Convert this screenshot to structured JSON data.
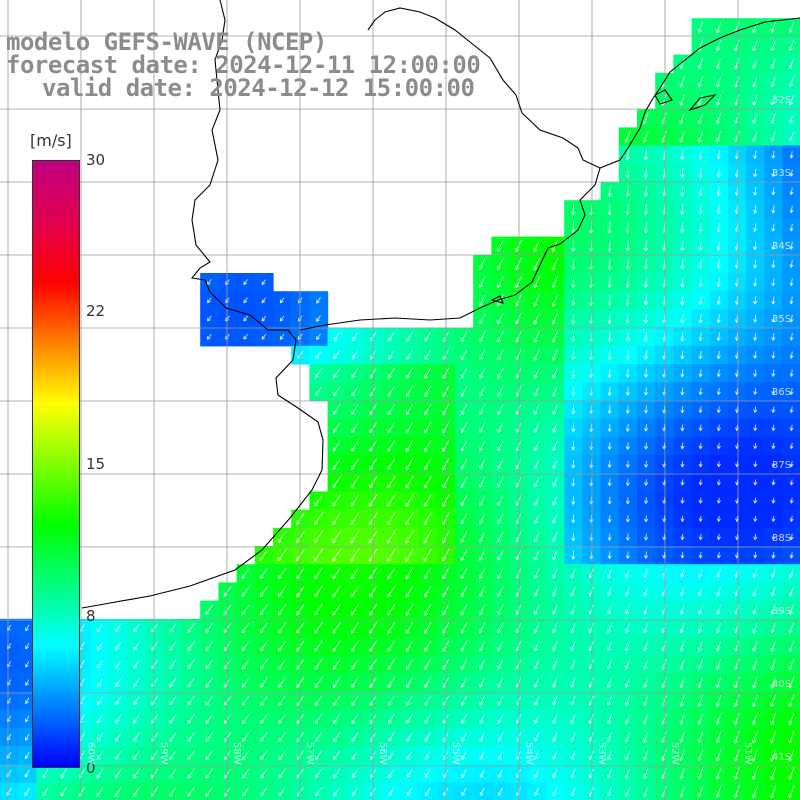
{
  "header": {
    "line1": "modelo GEFS-WAVE (NCEP)",
    "line2": "forecast date: 2024-12-11 12:00:00",
    "line3": "valid date: 2024-12-12 15:00:00"
  },
  "colorbar": {
    "unit": "[m/s]",
    "ticks": [
      "30",
      "22",
      "15",
      "8",
      "0"
    ],
    "tick_values": [
      30,
      22,
      15,
      8,
      0
    ],
    "min": 0,
    "max": 30,
    "stops": [
      "#0000ff",
      "#0080ff",
      "#00ffff",
      "#00ff80",
      "#00ff00",
      "#80ff00",
      "#ffff00",
      "#ff8000",
      "#ff0000",
      "#e0004f",
      "#c00080"
    ]
  },
  "map": {
    "lat_labels": [
      "32S",
      "33S",
      "34S",
      "35S",
      "36S",
      "37S",
      "38S",
      "39S",
      "40S",
      "41S"
    ],
    "lon_labels": [
      "60W",
      "59W",
      "58W",
      "57W",
      "56W",
      "55W",
      "54W",
      "53W",
      "52W",
      "51W"
    ],
    "colors": {
      "land": "#ffffff",
      "coast": "#000000",
      "grid": "#9a9a9a",
      "arrow": "#ffffff"
    }
  }
}
